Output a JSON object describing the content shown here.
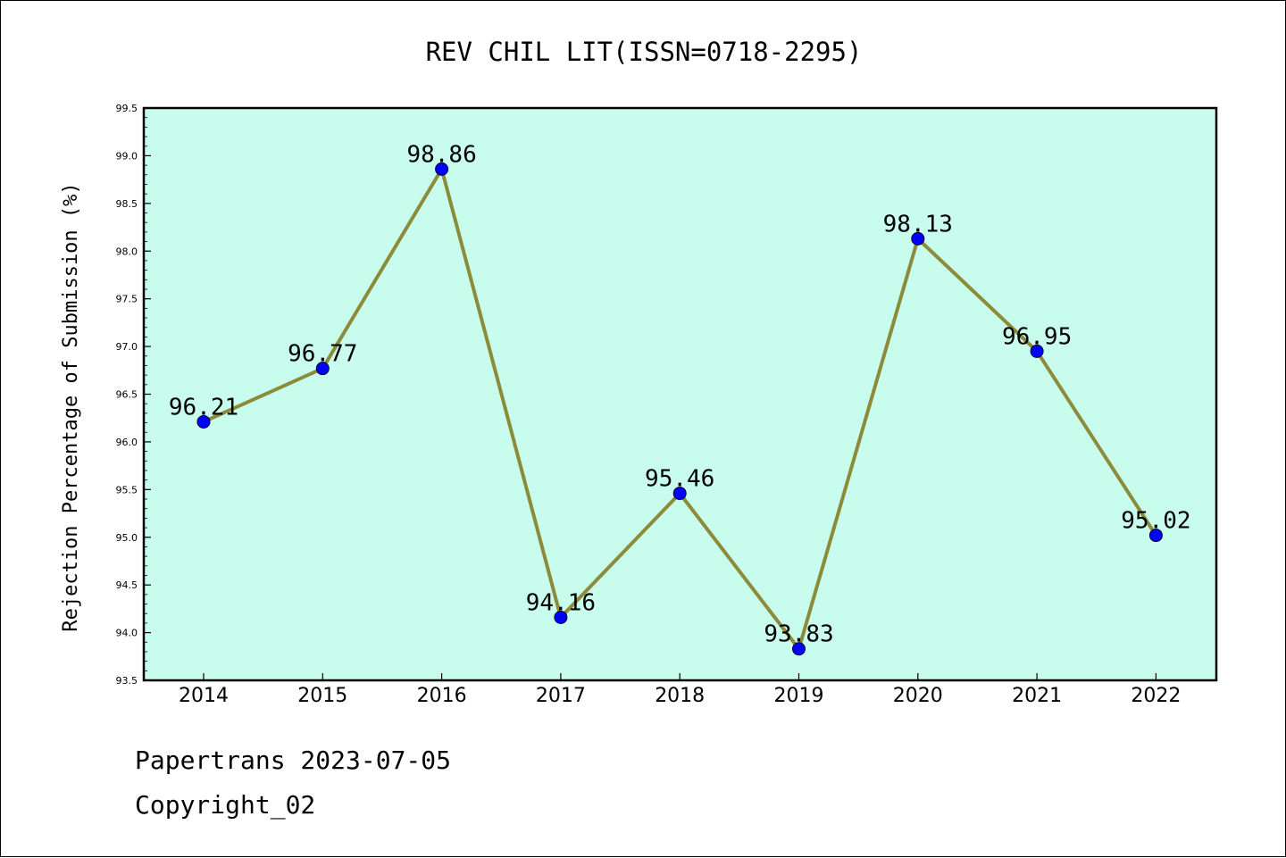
{
  "chart_data": {
    "type": "line",
    "title": "REV CHIL LIT(ISSN=0718-2295)",
    "xlabel": "",
    "ylabel": "Rejection Percentage of Submission (%)",
    "categories": [
      "2014",
      "2015",
      "2016",
      "2017",
      "2018",
      "2019",
      "2020",
      "2021",
      "2022"
    ],
    "series": [
      {
        "values": [
          96.21,
          96.77,
          98.86,
          94.16,
          95.46,
          93.83,
          98.13,
          96.95,
          95.02
        ],
        "labels": [
          "96.21",
          "96.77",
          "98.86",
          "94.16",
          "95.46",
          "93.83",
          "98.13",
          "96.95",
          "95.02"
        ]
      }
    ],
    "ylim": [
      93.5,
      99.5
    ],
    "yticks": [
      93.5,
      94.0,
      94.5,
      95.0,
      95.5,
      96.0,
      96.5,
      97.0,
      97.5,
      98.0,
      98.5,
      99.0,
      99.5
    ],
    "ytick_labels": [
      "93.5",
      "94.0",
      "94.5",
      "95.0",
      "95.5",
      "96.0",
      "96.5",
      "97.0",
      "97.5",
      "98.0",
      "98.5",
      "99.0",
      "99.5"
    ],
    "grid": false,
    "colors": {
      "plot_background": "#c8fced",
      "line": "#8b8b3a",
      "marker": "#0000ff"
    }
  },
  "footer": {
    "line1": "Papertrans 2023-07-05",
    "line2": "Copyright_02"
  }
}
